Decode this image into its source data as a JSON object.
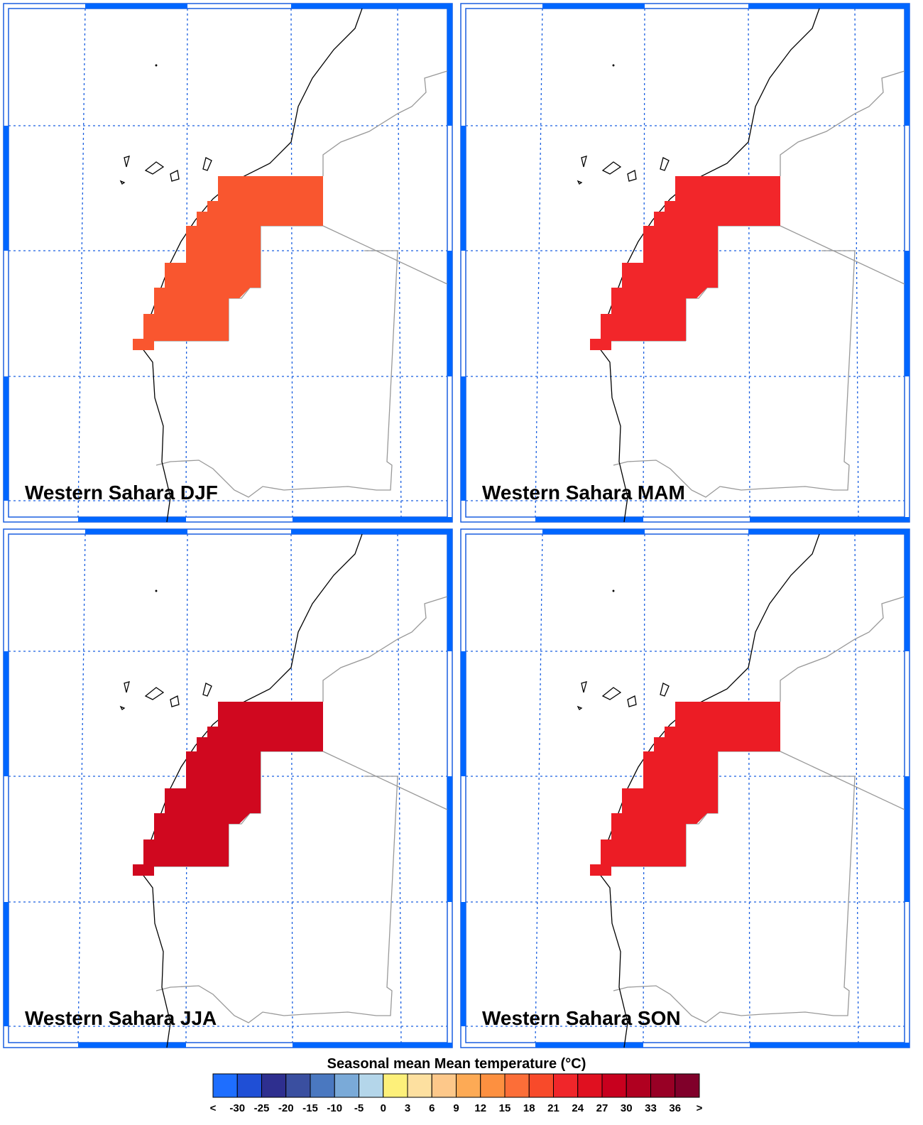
{
  "panels": [
    {
      "title": "Western Sahara DJF",
      "color": "#f9562f"
    },
    {
      "title": "Western Sahara MAM",
      "color": "#f2262a"
    },
    {
      "title": "Western Sahara JJA",
      "color": "#d0081f"
    },
    {
      "title": "Western Sahara SON",
      "color": "#ec1c25"
    }
  ],
  "colorbar": {
    "title": "Seasonal mean Mean temperature (°C)",
    "labels": [
      "<",
      "-30",
      "-25",
      "-20",
      "-15",
      "-10",
      "-5",
      "0",
      "3",
      "6",
      "9",
      "12",
      "15",
      "18",
      "21",
      "24",
      "27",
      "30",
      "33",
      "36",
      ">"
    ],
    "colors": [
      "#1e6eff",
      "#1f4fd6",
      "#2e2f8f",
      "#3a4fa0",
      "#4a78c0",
      "#7aaad8",
      "#b4d6ea",
      "#fdf07a",
      "#fde0a0",
      "#fdc88a",
      "#fdaa55",
      "#fd9040",
      "#fc6e38",
      "#f84a2a",
      "#f0262a",
      "#e01020",
      "#c8001e",
      "#b00020",
      "#980025",
      "#80002a"
    ]
  }
}
